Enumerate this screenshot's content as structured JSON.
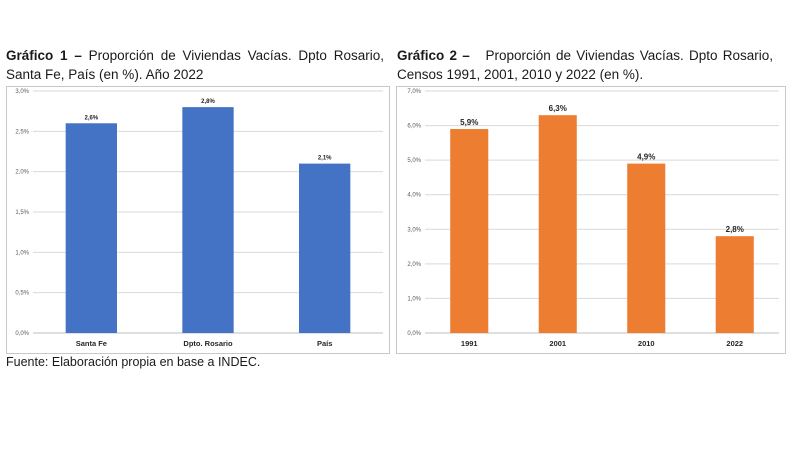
{
  "charts": [
    {
      "title_bold": "Gráfico 1 –",
      "title_rest": " Proporción de Viviendas Vacías. Dpto Rosario, Santa Fe, País (en %). Año 2022"
    },
    {
      "title_bold": "Gráfico 2 –",
      "title_rest": "   Proporción de Viviendas Vacías. Dpto Rosario, Censos 1991, 2001, 2010 y 2022 (en %)."
    }
  ],
  "source": "Fuente: Elaboración propia en base a INDEC.",
  "chart_data": [
    {
      "type": "bar",
      "title": "Gráfico 1 – Proporción de Viviendas Vacías. Dpto Rosario, Santa Fe, País (en %). Año 2022",
      "categories": [
        "Santa Fe",
        "Dpto. Rosario",
        "País"
      ],
      "values": [
        2.6,
        2.8,
        2.1
      ],
      "data_labels": [
        "2,6%",
        "2,8%",
        "2,1%"
      ],
      "yticks": [
        0,
        0.5,
        1.0,
        1.5,
        2.0,
        2.5,
        3.0
      ],
      "ytick_labels": [
        "0,0%",
        "0,5%",
        "1,0%",
        "1,5%",
        "2,0%",
        "2,5%",
        "3,0%"
      ],
      "ylim": [
        0,
        3.0
      ],
      "grid": true,
      "color": "#4472c4"
    },
    {
      "type": "bar",
      "title": "Gráfico 2 – Proporción de Viviendas Vacías. Dpto Rosario, Censos 1991, 2001, 2010 y 2022 (en %).",
      "categories": [
        "1991",
        "2001",
        "2010",
        "2022"
      ],
      "values": [
        5.9,
        6.3,
        4.9,
        2.8
      ],
      "data_labels": [
        "5,9%",
        "6,3%",
        "4,9%",
        "2,8%"
      ],
      "yticks": [
        0,
        1,
        2,
        3,
        4,
        5,
        6,
        7
      ],
      "ytick_labels": [
        "0,0%",
        "1,0%",
        "2,0%",
        "3,0%",
        "4,0%",
        "5,0%",
        "6,0%",
        "7,0%"
      ],
      "ylim": [
        0,
        7.0
      ],
      "grid": true,
      "color": "#ed7d31"
    }
  ]
}
